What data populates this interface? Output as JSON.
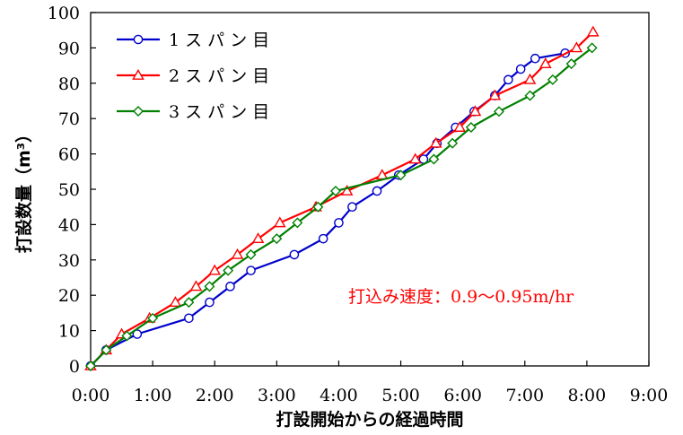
{
  "chart_data": {
    "type": "line",
    "xlabel": "打設開始からの経過時間",
    "ylabel": "打設数量（m³）",
    "xlim": [
      0,
      540
    ],
    "ylim": [
      0,
      100
    ],
    "x_ticks": [
      {
        "value": 0,
        "label": "0:00"
      },
      {
        "value": 60,
        "label": "1:00"
      },
      {
        "value": 120,
        "label": "2:00"
      },
      {
        "value": 180,
        "label": "3:00"
      },
      {
        "value": 240,
        "label": "4:00"
      },
      {
        "value": 300,
        "label": "5:00"
      },
      {
        "value": 360,
        "label": "6:00"
      },
      {
        "value": 420,
        "label": "7:00"
      },
      {
        "value": 480,
        "label": "8:00"
      },
      {
        "value": 540,
        "label": "9:00"
      }
    ],
    "y_ticks": [
      0,
      10,
      20,
      30,
      40,
      50,
      60,
      70,
      80,
      90,
      100
    ],
    "grid": false,
    "legend_position": "top-left",
    "annotation": {
      "text": "打込み速度：0.9～0.95m/hr",
      "color": "#ff0000"
    },
    "series": [
      {
        "name": "1 ス パ ン 目",
        "color": "#0000cc",
        "marker": "circle",
        "points": [
          [
            0,
            0
          ],
          [
            15,
            4.5
          ],
          [
            45,
            9
          ],
          [
            95,
            13.5
          ],
          [
            115,
            18
          ],
          [
            135,
            22.5
          ],
          [
            155,
            27
          ],
          [
            197,
            31.5
          ],
          [
            225,
            36
          ],
          [
            240,
            40.5
          ],
          [
            253,
            45
          ],
          [
            277,
            49.5
          ],
          [
            298,
            54
          ],
          [
            322,
            58.5
          ],
          [
            335,
            63
          ],
          [
            353,
            67.5
          ],
          [
            371,
            72
          ],
          [
            391,
            76.5
          ],
          [
            404,
            81
          ],
          [
            416,
            84
          ],
          [
            430,
            87
          ],
          [
            459,
            88.5
          ]
        ]
      },
      {
        "name": "2 ス パ ン 目",
        "color": "#ff0000",
        "marker": "triangle",
        "points": [
          [
            0,
            0
          ],
          [
            15,
            4.5
          ],
          [
            30,
            9
          ],
          [
            57,
            13.5
          ],
          [
            82,
            18
          ],
          [
            102,
            22.5
          ],
          [
            120,
            27
          ],
          [
            142,
            31.5
          ],
          [
            162,
            36
          ],
          [
            183,
            40.5
          ],
          [
            218,
            45
          ],
          [
            248,
            49.5
          ],
          [
            282,
            54
          ],
          [
            314,
            58.5
          ],
          [
            334,
            63
          ],
          [
            357,
            67.5
          ],
          [
            372,
            72
          ],
          [
            391,
            76.5
          ],
          [
            425,
            81
          ],
          [
            440,
            85.5
          ],
          [
            470,
            90
          ],
          [
            486,
            94.5
          ]
        ]
      },
      {
        "name": "3 ス パ ン 目",
        "color": "#008000",
        "marker": "diamond",
        "points": [
          [
            0,
            0
          ],
          [
            15,
            4.5
          ],
          [
            35,
            8.5
          ],
          [
            60,
            13.5
          ],
          [
            95,
            18
          ],
          [
            115,
            22.5
          ],
          [
            133,
            27
          ],
          [
            155,
            31.5
          ],
          [
            180,
            36
          ],
          [
            200,
            40.5
          ],
          [
            220,
            45
          ],
          [
            237,
            49.5
          ],
          [
            300,
            54
          ],
          [
            332,
            58.5
          ],
          [
            350,
            63
          ],
          [
            368,
            67.5
          ],
          [
            395,
            72
          ],
          [
            425,
            76.5
          ],
          [
            447,
            81
          ],
          [
            465,
            85.5
          ],
          [
            485,
            90
          ]
        ]
      }
    ]
  }
}
